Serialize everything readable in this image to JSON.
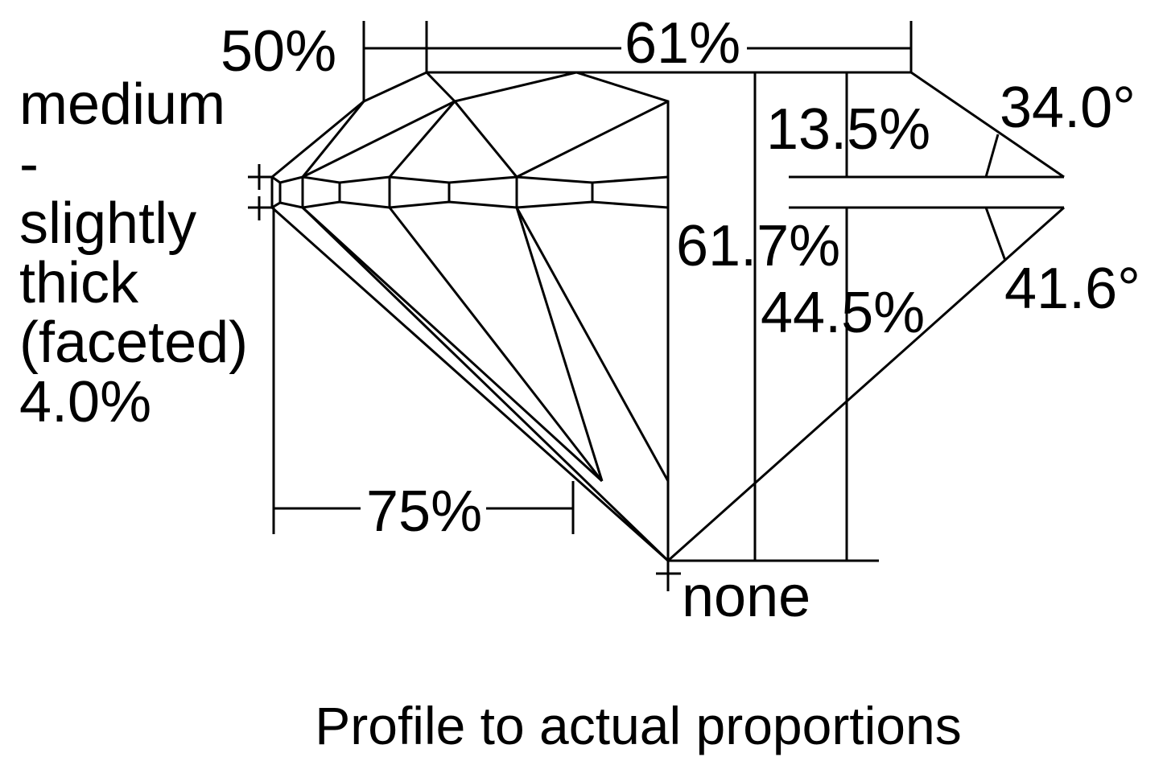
{
  "diagram": {
    "caption": "Profile to actual proportions",
    "labels": {
      "star_length": "50%",
      "table": "61%",
      "crown_height": "13.5%",
      "crown_angle": "34.0°",
      "total_depth": "61.7%",
      "pavilion_depth": "44.5%",
      "pavilion_angle": "41.6°",
      "lower_half_length": "75%",
      "culet": "none"
    },
    "girdle": {
      "lines": [
        "medium",
        "-",
        "slightly",
        "thick",
        "(faceted)",
        "4.0%"
      ]
    },
    "colors": {
      "line": "#000000",
      "background": "#ffffff"
    }
  }
}
